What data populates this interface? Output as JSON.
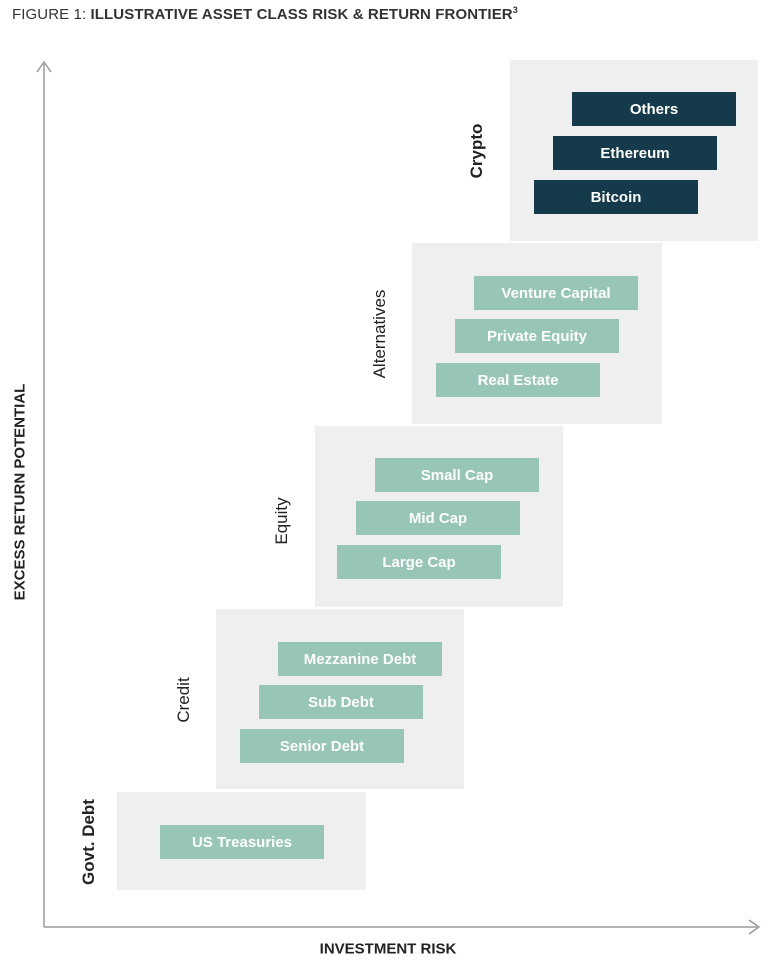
{
  "figure": {
    "prefix": "FIGURE 1: ",
    "title": "ILLUSTRATIVE ASSET CLASS RISK & RETURN FRONTIER",
    "footnote": "3"
  },
  "axes": {
    "y_label": "EXCESS RETURN POTENTIAL",
    "x_label": "INVESTMENT RISK"
  },
  "colors": {
    "panel": "#efefef",
    "bar_light": "#97c5b6",
    "bar_dark": "#143a4b"
  },
  "categories": [
    {
      "name": "Govt. Debt",
      "items": [
        "US Treasuries"
      ]
    },
    {
      "name": "Credit",
      "items": [
        "Mezzanine Debt",
        "Sub Debt",
        "Senior Debt"
      ]
    },
    {
      "name": "Equity",
      "items": [
        "Small Cap",
        "Mid Cap",
        "Large Cap"
      ]
    },
    {
      "name": "Alternatives",
      "items": [
        "Venture Capital",
        "Private Equity",
        "Real Estate"
      ]
    },
    {
      "name": "Crypto",
      "items": [
        "Others",
        "Ethereum",
        "Bitcoin"
      ]
    }
  ]
}
